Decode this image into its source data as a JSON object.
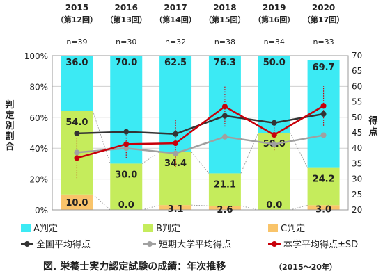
{
  "chart_data": {
    "type": "bar",
    "subtype": "stacked-bar-with-lines",
    "categories": [
      "2015",
      "2016",
      "2017",
      "2018",
      "2019",
      "2020"
    ],
    "category_sublabels": [
      "（第12回）",
      "（第13回）",
      "（第14回）",
      "（第15回）",
      "（第16回）",
      "（第17回）"
    ],
    "n_labels": [
      "n=39",
      "n=30",
      "n=32",
      "n=38",
      "n=34",
      "n=33"
    ],
    "bar_series": [
      {
        "name": "C判定",
        "color": "#f9c46a",
        "values": [
          10.0,
          0.0,
          3.1,
          2.6,
          0.0,
          3.0
        ],
        "labels": [
          "10.0",
          "0.0",
          "3.1",
          "2.6",
          "0.0",
          "3.0"
        ]
      },
      {
        "name": "B判定",
        "color": "#c5ec5c",
        "values": [
          54.0,
          30.0,
          34.4,
          21.1,
          50.0,
          24.2
        ],
        "labels": [
          "54.0",
          "30.0",
          "34.4",
          "21.1",
          "50.0",
          "24.2"
        ]
      },
      {
        "name": "A判定",
        "color": "#3ceaf4",
        "values": [
          36.0,
          70.0,
          62.5,
          76.3,
          50.0,
          69.7
        ],
        "labels": [
          "36.0",
          "70.0",
          "62.5",
          "76.3",
          "50.0",
          "69.7"
        ]
      }
    ],
    "line_series": [
      {
        "name": "全国平均得点",
        "color": "#333333",
        "values": [
          44.8,
          45.3,
          44.6,
          50.5,
          48.2,
          51.1
        ]
      },
      {
        "name": "短期大学平均得点",
        "color": "#a0a0a0",
        "values": [
          38.6,
          40.0,
          38.3,
          43.7,
          41.3,
          44.2
        ]
      },
      {
        "name": "本学平均得点±SD",
        "color": "#c8000a",
        "values": [
          36.8,
          41.3,
          41.6,
          53.5,
          44.3,
          53.7
        ],
        "sd": [
          6.5,
          4.5,
          7.8,
          6.5,
          5.0,
          6.4
        ]
      }
    ],
    "yaxis_left": {
      "label": "判定別割合",
      "range": [
        0,
        100
      ],
      "tick_labels": [
        "0%",
        "20%",
        "40%",
        "60%",
        "80%",
        "100%"
      ]
    },
    "yaxis_right": {
      "label": "得点",
      "range": [
        20,
        70
      ],
      "tick_labels": [
        "20",
        "25",
        "30",
        "35",
        "40",
        "45",
        "50",
        "55",
        "60",
        "65",
        "70"
      ]
    },
    "grid": true,
    "legend": "bottom",
    "legend_items": [
      "A判定",
      "B判定",
      "C判定",
      "全国平均得点",
      "短期大学平均得点",
      "本学平均得点±SD"
    ],
    "caption": "図. 栄養士実力認定試験の成績：年次推移",
    "caption_sub": "（2015～20年）"
  }
}
